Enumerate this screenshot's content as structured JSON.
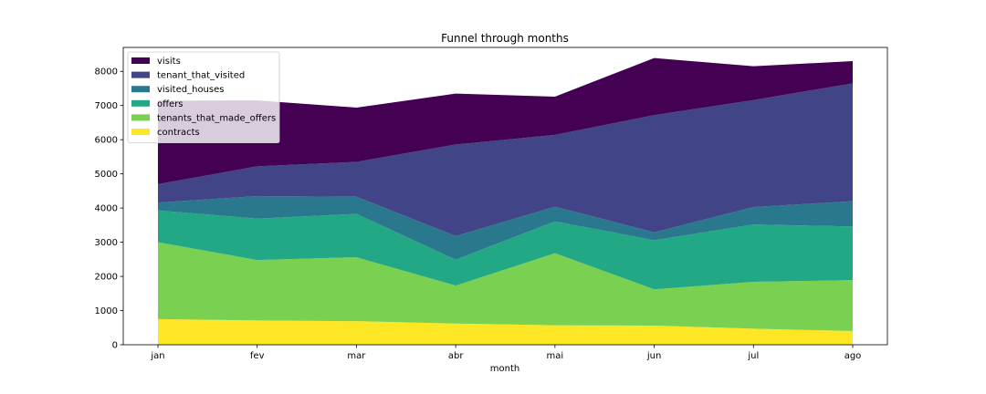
{
  "chart_data": {
    "type": "area",
    "stacked": true,
    "title": "Funnel through months",
    "xlabel": "month",
    "ylabel": "",
    "categories": [
      "jan",
      "fev",
      "mar",
      "abr",
      "mai",
      "jun",
      "jul",
      "ago"
    ],
    "ylim": [
      0,
      8700
    ],
    "yticks": [
      0,
      1000,
      2000,
      3000,
      4000,
      5000,
      6000,
      7000,
      8000
    ],
    "grid": false,
    "legend_position": "top-left",
    "series": [
      {
        "name": "contracts",
        "color": "#fde725",
        "values": [
          750,
          710,
          690,
          620,
          570,
          560,
          470,
          400
        ]
      },
      {
        "name": "tenants_that_made_offers",
        "color": "#7ad151",
        "values": [
          2250,
          1770,
          1870,
          1110,
          2110,
          1060,
          1370,
          1490
        ]
      },
      {
        "name": "offers",
        "color": "#22a884",
        "values": [
          930,
          1210,
          1270,
          760,
          930,
          1440,
          1680,
          1570
        ]
      },
      {
        "name": "visited_houses",
        "color": "#2a788e",
        "values": [
          230,
          660,
          500,
          690,
          430,
          230,
          510,
          740
        ]
      },
      {
        "name": "tenant_that_visited",
        "color": "#414487",
        "values": [
          540,
          870,
          1020,
          2680,
          2100,
          3430,
          3130,
          3450
        ]
      },
      {
        "name": "visits",
        "color": "#440154",
        "values": [
          2440,
          1930,
          1590,
          1490,
          1120,
          1670,
          990,
          650
        ]
      }
    ]
  }
}
